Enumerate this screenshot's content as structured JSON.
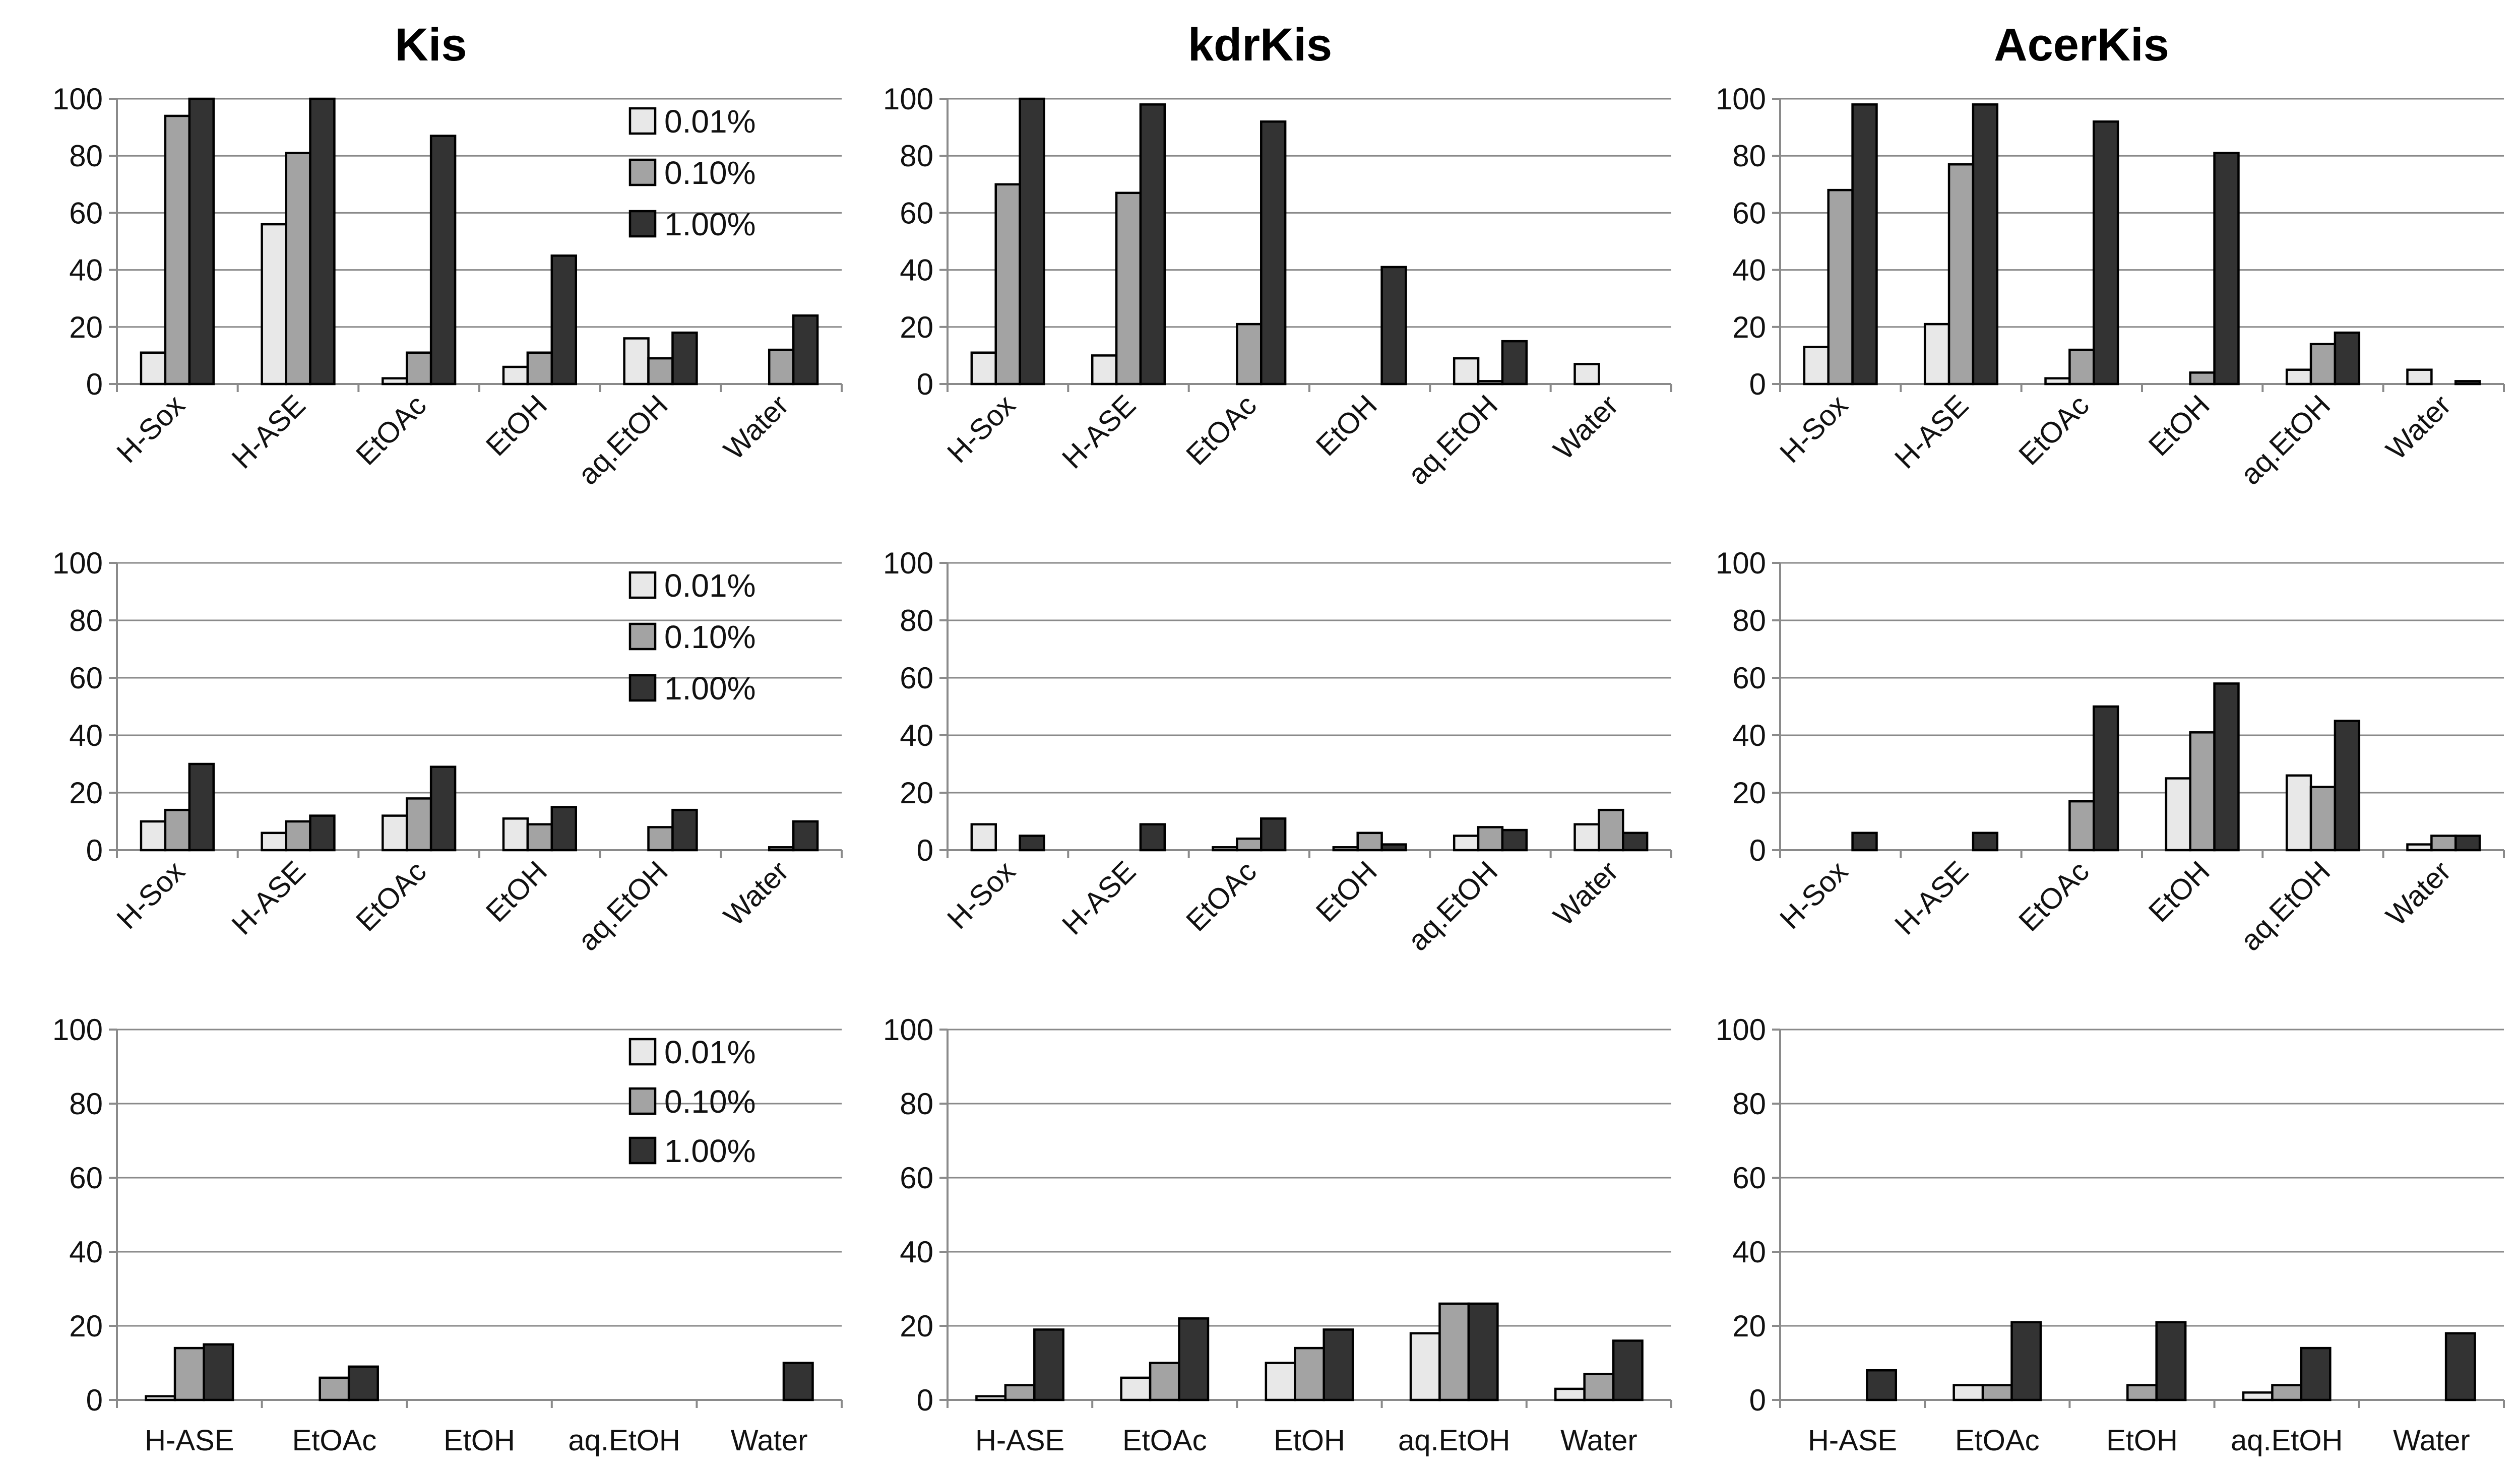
{
  "colors": {
    "0.01%": "#e8e8e8",
    "0.10%": "#a3a3a3",
    "1.00%": "#333333"
  },
  "chart_data": [
    {
      "type": "bar",
      "title": "Kis",
      "xlabel": "",
      "ylabel": "",
      "ylim": [
        0,
        100
      ],
      "yticks": [
        "0",
        "20",
        "40",
        "60",
        "80",
        "100"
      ],
      "categories": [
        "H-Sox",
        "H-ASE",
        "EtOAc",
        "EtOH",
        "aq.EtOH",
        "Water"
      ],
      "tick_rotation": -45,
      "legend": "top-right",
      "series": [
        {
          "name": "0.01%",
          "values": [
            11,
            56,
            2,
            6,
            16,
            0
          ]
        },
        {
          "name": "0.10%",
          "values": [
            94,
            81,
            11,
            11,
            9,
            12
          ]
        },
        {
          "name": "1.00%",
          "values": [
            100,
            100,
            87,
            45,
            18,
            24
          ]
        }
      ]
    },
    {
      "type": "bar",
      "title": "kdrKis",
      "xlabel": "",
      "ylabel": "",
      "ylim": [
        0,
        100
      ],
      "yticks": [
        "0",
        "20",
        "40",
        "60",
        "80",
        "100"
      ],
      "categories": [
        "H-Sox",
        "H-ASE",
        "EtOAc",
        "EtOH",
        "aq.EtOH",
        "Water"
      ],
      "tick_rotation": -45,
      "series": [
        {
          "name": "0.01%",
          "values": [
            11,
            10,
            0,
            0,
            9,
            7
          ]
        },
        {
          "name": "0.10%",
          "values": [
            70,
            67,
            21,
            0,
            1,
            0
          ]
        },
        {
          "name": "1.00%",
          "values": [
            100,
            98,
            92,
            41,
            15,
            0
          ]
        }
      ]
    },
    {
      "type": "bar",
      "title": "AcerKis",
      "xlabel": "",
      "ylabel": "",
      "ylim": [
        0,
        100
      ],
      "yticks": [
        "0",
        "20",
        "40",
        "60",
        "80",
        "100"
      ],
      "categories": [
        "H-Sox",
        "H-ASE",
        "EtOAc",
        "EtOH",
        "aq.EtOH",
        "Water"
      ],
      "tick_rotation": -45,
      "series": [
        {
          "name": "0.01%",
          "values": [
            13,
            21,
            2,
            0,
            5,
            5
          ]
        },
        {
          "name": "0.10%",
          "values": [
            68,
            77,
            12,
            4,
            14,
            0
          ]
        },
        {
          "name": "1.00%",
          "values": [
            98,
            98,
            92,
            81,
            18,
            1
          ]
        }
      ]
    },
    {
      "type": "bar",
      "title": "",
      "xlabel": "",
      "ylabel": "",
      "ylim": [
        0,
        100
      ],
      "yticks": [
        "0",
        "20",
        "40",
        "60",
        "80",
        "100"
      ],
      "categories": [
        "H-Sox",
        "H-ASE",
        "EtOAc",
        "EtOH",
        "aq.EtOH",
        "Water"
      ],
      "tick_rotation": -45,
      "legend": "top-right",
      "series": [
        {
          "name": "0.01%",
          "values": [
            10,
            6,
            12,
            11,
            0,
            0
          ]
        },
        {
          "name": "0.10%",
          "values": [
            14,
            10,
            18,
            9,
            8,
            1
          ]
        },
        {
          "name": "1.00%",
          "values": [
            30,
            12,
            29,
            15,
            14,
            10
          ]
        }
      ]
    },
    {
      "type": "bar",
      "title": "",
      "xlabel": "",
      "ylabel": "",
      "ylim": [
        0,
        100
      ],
      "yticks": [
        "0",
        "20",
        "40",
        "60",
        "80",
        "100"
      ],
      "categories": [
        "H-Sox",
        "H-ASE",
        "EtOAc",
        "EtOH",
        "aq.EtOH",
        "Water"
      ],
      "tick_rotation": -45,
      "series": [
        {
          "name": "0.01%",
          "values": [
            9,
            0,
            1,
            1,
            5,
            9
          ]
        },
        {
          "name": "0.10%",
          "values": [
            0,
            0,
            4,
            6,
            8,
            14
          ]
        },
        {
          "name": "1.00%",
          "values": [
            5,
            9,
            11,
            2,
            7,
            6
          ]
        }
      ]
    },
    {
      "type": "bar",
      "title": "",
      "xlabel": "",
      "ylabel": "",
      "ylim": [
        0,
        100
      ],
      "yticks": [
        "0",
        "20",
        "40",
        "60",
        "80",
        "100"
      ],
      "categories": [
        "H-Sox",
        "H-ASE",
        "EtOAc",
        "EtOH",
        "aq.EtOH",
        "Water"
      ],
      "tick_rotation": -45,
      "series": [
        {
          "name": "0.01%",
          "values": [
            0,
            0,
            0,
            25,
            26,
            2
          ]
        },
        {
          "name": "0.10%",
          "values": [
            0,
            0,
            17,
            41,
            22,
            5
          ]
        },
        {
          "name": "1.00%",
          "values": [
            6,
            6,
            50,
            58,
            45,
            5
          ]
        }
      ]
    },
    {
      "type": "bar",
      "title": "",
      "xlabel": "",
      "ylabel": "",
      "ylim": [
        0,
        100
      ],
      "yticks": [
        "0",
        "20",
        "40",
        "60",
        "80",
        "100"
      ],
      "categories": [
        "H-ASE",
        "EtOAc",
        "EtOH",
        "aq.EtOH",
        "Water"
      ],
      "tick_rotation": 0,
      "legend": "top-right",
      "series": [
        {
          "name": "0.01%",
          "values": [
            1,
            0,
            0,
            0,
            0
          ]
        },
        {
          "name": "0.10%",
          "values": [
            14,
            6,
            0,
            0,
            0
          ]
        },
        {
          "name": "1.00%",
          "values": [
            15,
            9,
            0,
            0,
            10
          ]
        }
      ]
    },
    {
      "type": "bar",
      "title": "",
      "xlabel": "",
      "ylabel": "",
      "ylim": [
        0,
        100
      ],
      "yticks": [
        "0",
        "20",
        "40",
        "60",
        "80",
        "100"
      ],
      "categories": [
        "H-ASE",
        "EtOAc",
        "EtOH",
        "aq.EtOH",
        "Water"
      ],
      "tick_rotation": 0,
      "series": [
        {
          "name": "0.01%",
          "values": [
            1,
            6,
            10,
            18,
            3
          ]
        },
        {
          "name": "0.10%",
          "values": [
            4,
            10,
            14,
            26,
            7
          ]
        },
        {
          "name": "1.00%",
          "values": [
            19,
            22,
            19,
            26,
            16
          ]
        }
      ]
    },
    {
      "type": "bar",
      "title": "",
      "xlabel": "",
      "ylabel": "",
      "ylim": [
        0,
        100
      ],
      "yticks": [
        "0",
        "20",
        "40",
        "60",
        "80",
        "100"
      ],
      "categories": [
        "H-ASE",
        "EtOAc",
        "EtOH",
        "aq.EtOH",
        "Water"
      ],
      "tick_rotation": 0,
      "series": [
        {
          "name": "0.01%",
          "values": [
            0,
            4,
            0,
            2,
            0
          ]
        },
        {
          "name": "0.10%",
          "values": [
            0,
            4,
            4,
            4,
            0
          ]
        },
        {
          "name": "1.00%",
          "values": [
            8,
            21,
            21,
            14,
            18
          ]
        }
      ]
    }
  ]
}
